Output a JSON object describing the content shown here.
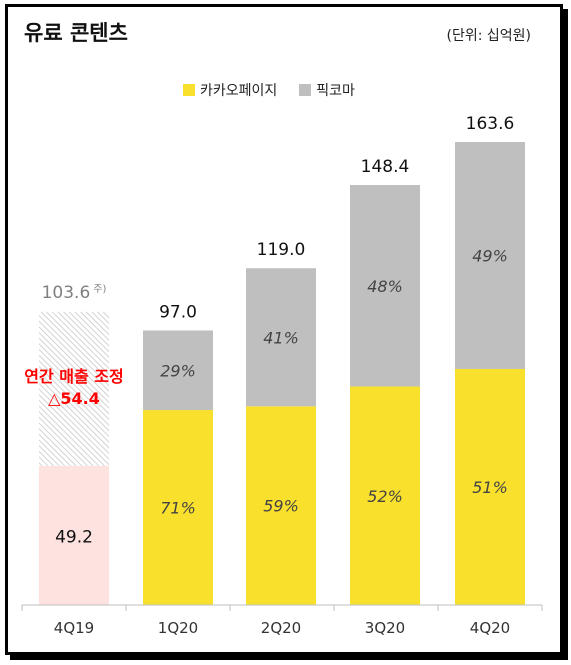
{
  "title": "유료 콘텐츠",
  "unit": "(단위: 십억원)",
  "colors": {
    "kakaopage": "#f9e02c",
    "piccoma": "#bfbfbf",
    "adjusted_base": "#fde2e0",
    "adjustment_hatch": "#c8c8c8",
    "annotation_red": "#ff0000"
  },
  "annotation": {
    "line1": "연간 매출 조정",
    "line2": "△54.4"
  },
  "chart_data": {
    "type": "bar",
    "stacked": true,
    "categories": [
      "4Q19",
      "1Q20",
      "2Q20",
      "3Q20",
      "4Q20"
    ],
    "totals": [
      "103.6",
      "97.0",
      "119.0",
      "148.4",
      "163.6"
    ],
    "total_note": "주)",
    "base_value_label": "49.2",
    "series": [
      {
        "name": "카카오페이지",
        "values": [
          49.2,
          68.9,
          70.2,
          77.2,
          83.4
        ],
        "labels": [
          "",
          "71%",
          "59%",
          "52%",
          "51%"
        ]
      },
      {
        "name": "픽코마",
        "values": [
          54.4,
          28.1,
          48.8,
          71.2,
          80.2
        ],
        "labels": [
          "",
          "29%",
          "41%",
          "48%",
          "49%"
        ]
      }
    ],
    "ylim": [
      0,
      175
    ]
  }
}
